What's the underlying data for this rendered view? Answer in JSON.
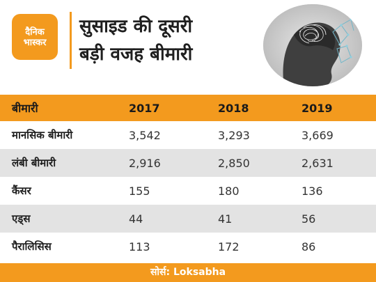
{
  "brand": {
    "logo_line1": "दैनिक",
    "logo_line2": "भास्कर",
    "accent_color": "#f39a1e"
  },
  "headline": {
    "line1": "सुसाइड की दूसरी",
    "line2": "बड़ी वजह बीमारी"
  },
  "chart_data": {
    "type": "table",
    "columns": [
      "बीमारी",
      "2017",
      "2018",
      "2019"
    ],
    "rows": [
      {
        "label": "मानसिक बीमारी",
        "values": [
          "3,542",
          "3,293",
          "3,669"
        ]
      },
      {
        "label": "लंबी बीमारी",
        "values": [
          "2,916",
          "2,850",
          "2,631"
        ]
      },
      {
        "label": "कैंसर",
        "values": [
          "155",
          "180",
          "136"
        ]
      },
      {
        "label": "एड्स",
        "values": [
          "44",
          "41",
          "56"
        ]
      },
      {
        "label": "पैरालिसिस",
        "values": [
          "113",
          "172",
          "86"
        ]
      }
    ]
  },
  "footer": {
    "source": "सोर्स: Loksabha"
  }
}
